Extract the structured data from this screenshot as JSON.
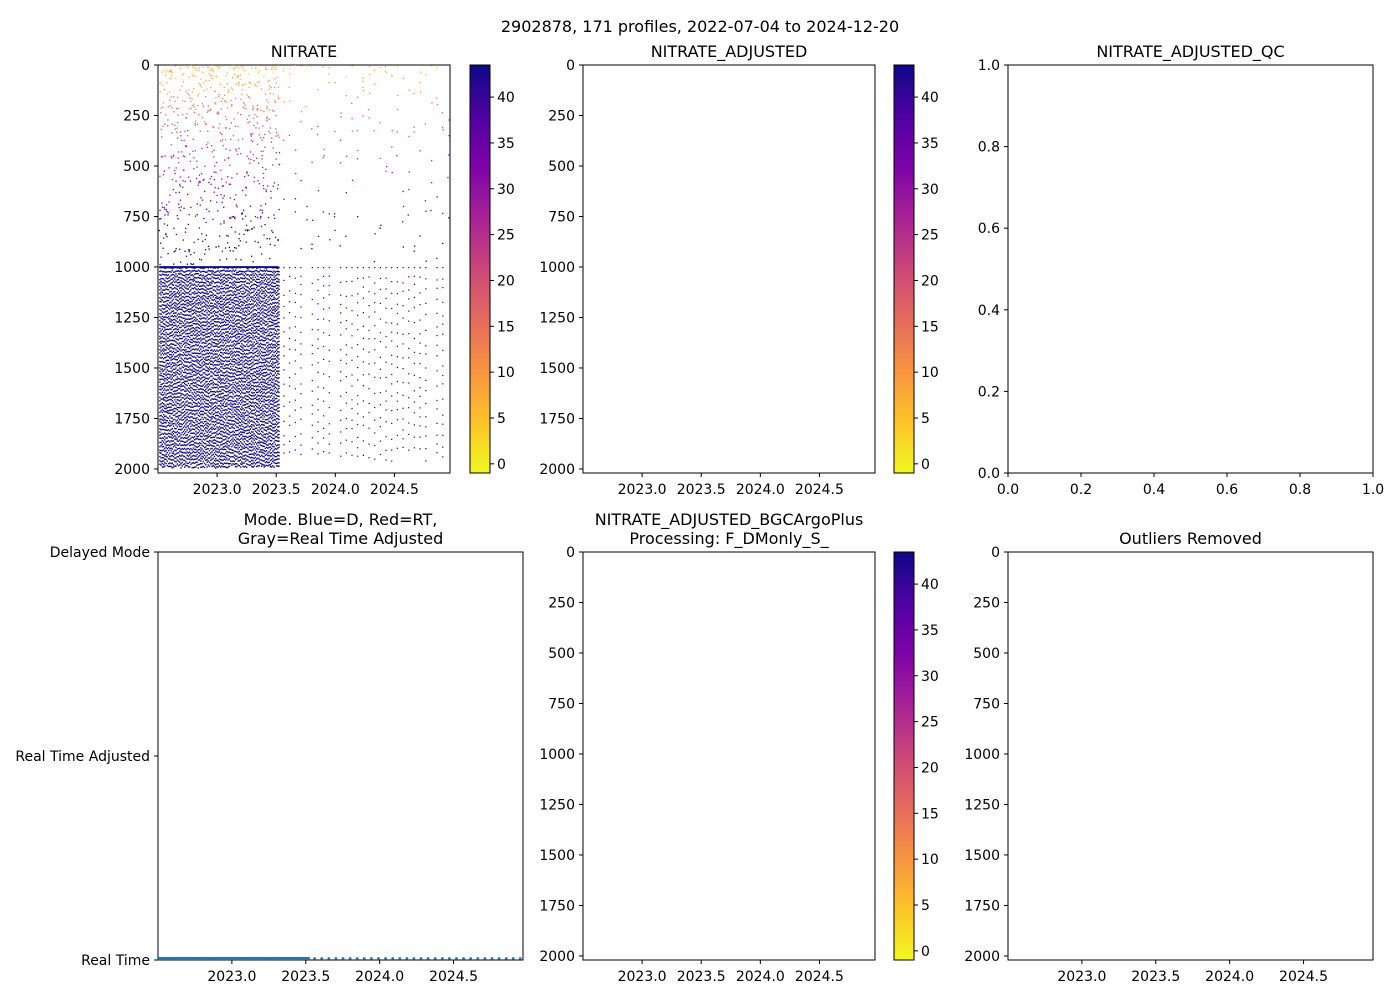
{
  "figure": {
    "suptitle": "2902878, 171 profiles, 2022-07-04 to 2024-12-20"
  },
  "colorbar": {
    "ticks": [
      0,
      5,
      10,
      15,
      20,
      25,
      30,
      35,
      40
    ],
    "range": [
      -1,
      43.5
    ],
    "colormap": [
      "#f0f921",
      "#fdc328",
      "#f89441",
      "#e56b5d",
      "#cb4778",
      "#a82296",
      "#7e03a8",
      "#5002a2",
      "#0d0887"
    ]
  },
  "chart_data": [
    {
      "id": "nitrate",
      "type": "scatter",
      "title": "NITRATE",
      "xlabel": "",
      "ylabel": "",
      "xlim": [
        2022.5,
        2024.97
      ],
      "ylim": [
        2020,
        0
      ],
      "xticks": [
        "2023.0",
        "2023.5",
        "2024.0",
        "2024.5"
      ],
      "yticks": [
        "0",
        "250",
        "500",
        "750",
        "1000",
        "1250",
        "1500",
        "1750",
        "2000"
      ],
      "colorbar": true,
      "profiles_first": 2022.51,
      "profiles_last": 2024.97,
      "dense_until": 2023.52,
      "value_range": [
        0,
        43
      ],
      "note": "dense nitrate profile points; low values near surface, ~43 below 1000 dbar"
    },
    {
      "id": "nitrate_adjusted",
      "type": "scatter",
      "title": "NITRATE_ADJUSTED",
      "xlim": [
        2022.5,
        2024.97
      ],
      "ylim": [
        2020,
        0
      ],
      "xticks": [
        "2023.0",
        "2023.5",
        "2024.0",
        "2024.5"
      ],
      "yticks": [
        "0",
        "250",
        "500",
        "750",
        "1000",
        "1250",
        "1500",
        "1750",
        "2000"
      ],
      "colorbar": true,
      "series": []
    },
    {
      "id": "nitrate_adjusted_qc",
      "type": "scatter",
      "title": "NITRATE_ADJUSTED_QC",
      "xlim": [
        0,
        1
      ],
      "ylim": [
        0,
        1
      ],
      "xticks": [
        "0.0",
        "0.2",
        "0.4",
        "0.6",
        "0.8",
        "1.0"
      ],
      "yticks": [
        "0.0",
        "0.2",
        "0.4",
        "0.6",
        "0.8",
        "1.0"
      ],
      "series": []
    },
    {
      "id": "mode",
      "type": "scatter",
      "title": "Mode. Blue=D, Red=RT,\nGray=Real Time Adjusted",
      "title_lines": [
        "Mode. Blue=D, Red=RT,",
        "Gray=Real Time Adjusted"
      ],
      "xlim": [
        2022.5,
        2024.97
      ],
      "xticks": [
        "2023.0",
        "2023.5",
        "2024.0",
        "2024.5"
      ],
      "ycategories": [
        "Delayed Mode",
        "Real Time Adjusted",
        "Real Time"
      ],
      "series": [
        {
          "name": "Real Time",
          "category": "Real Time",
          "x_start": 2022.51,
          "x_end": 2024.97,
          "dense_until": 2023.52,
          "color": "#1f77b4"
        }
      ]
    },
    {
      "id": "bgcargoplus",
      "type": "scatter",
      "title": "NITRATE_ADJUSTED_BGCArgoPlus\nProcessing: F_DMonly_S_",
      "title_lines": [
        "NITRATE_ADJUSTED_BGCArgoPlus",
        "Processing: F_DMonly_S_"
      ],
      "xlim": [
        2022.5,
        2024.97
      ],
      "ylim": [
        2020,
        0
      ],
      "xticks": [
        "2023.0",
        "2023.5",
        "2024.0",
        "2024.5"
      ],
      "yticks": [
        "0",
        "250",
        "500",
        "750",
        "1000",
        "1250",
        "1500",
        "1750",
        "2000"
      ],
      "colorbar": true,
      "series": []
    },
    {
      "id": "outliers",
      "type": "scatter",
      "title": "Outliers Removed",
      "xlim": [
        2022.5,
        2024.97
      ],
      "ylim": [
        2020,
        0
      ],
      "xticks": [
        "2023.0",
        "2023.5",
        "2024.0",
        "2024.5"
      ],
      "yticks": [
        "0",
        "250",
        "500",
        "750",
        "1000",
        "1250",
        "1500",
        "1750",
        "2000"
      ],
      "series": []
    }
  ]
}
